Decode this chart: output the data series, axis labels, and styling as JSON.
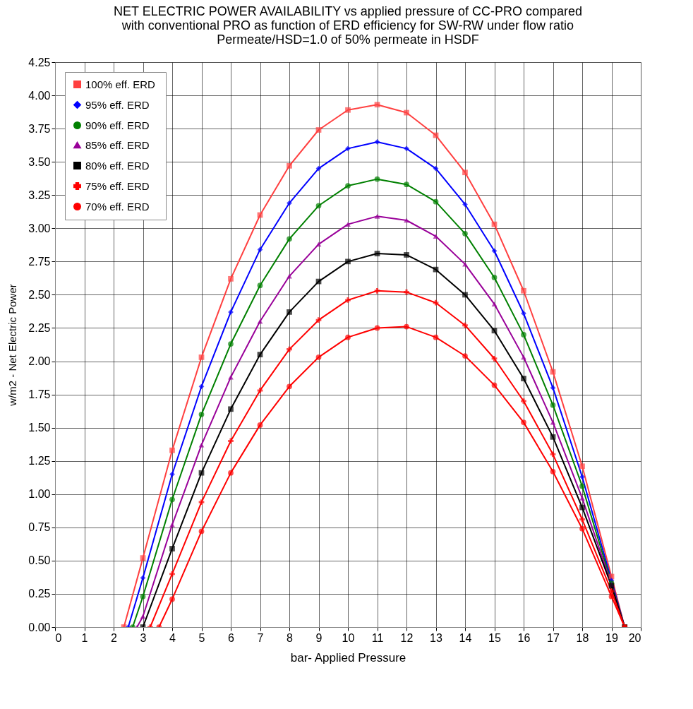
{
  "chart_data": {
    "type": "line",
    "title": [
      "NET ELECTRIC POWER AVAILABILITY vs applied pressure of CC-PRO compared",
      "with conventional PRO as function of ERD  efficiency for SW-RW under flow ratio",
      "Permeate/HSD=1.0 of 50% permeate in HSDF"
    ],
    "xlabel": "bar- Applied Pressure",
    "ylabel": "w/m2 - Net Electric Power",
    "xlim": [
      0,
      20
    ],
    "xticks": [
      0,
      1,
      2,
      3,
      4,
      5,
      6,
      7,
      8,
      9,
      10,
      11,
      12,
      13,
      14,
      15,
      16,
      17,
      18,
      19,
      20
    ],
    "ylim": [
      0,
      4.25
    ],
    "yticks": [
      {
        "value": 0,
        "label": "0.00"
      },
      {
        "value": 0.25,
        "label": "0.25"
      },
      {
        "value": 0.5,
        "label": "0.50"
      },
      {
        "value": 0.75,
        "label": "0.75"
      },
      {
        "value": 1,
        "label": "1.00"
      },
      {
        "value": 1.25,
        "label": "1.25"
      },
      {
        "value": 1.5,
        "label": "1.50"
      },
      {
        "value": 1.75,
        "label": "1.75"
      },
      {
        "value": 2,
        "label": "2.00"
      },
      {
        "value": 2.25,
        "label": "2.25"
      },
      {
        "value": 2.5,
        "label": "2.50"
      },
      {
        "value": 2.75,
        "label": "2.75"
      },
      {
        "value": 3,
        "label": "3.00"
      },
      {
        "value": 3.25,
        "label": "3.25"
      },
      {
        "value": 3.5,
        "label": "3.50"
      },
      {
        "value": 3.75,
        "label": "3.75"
      },
      {
        "value": 4,
        "label": "4.00"
      },
      {
        "value": 4.25,
        "label": "4.25"
      }
    ],
    "grid": true,
    "legend": "top left",
    "line_style": "solid",
    "series": [
      {
        "name": "100%  eff. ERD",
        "color": "#ff4040",
        "marker": "square",
        "x": [
          2.35,
          3,
          4,
          5,
          6,
          7,
          8,
          9,
          10,
          11,
          12,
          13,
          14,
          15,
          16,
          17,
          18,
          19,
          19.45
        ],
        "values": [
          0,
          0.52,
          1.33,
          2.03,
          2.62,
          3.1,
          3.47,
          3.74,
          3.89,
          3.93,
          3.87,
          3.7,
          3.42,
          3.03,
          2.53,
          1.92,
          1.21,
          0.38,
          0
        ]
      },
      {
        "name": "95% eff. ERD",
        "color": "#0000ff",
        "marker": "diamond",
        "x": [
          2.5,
          3,
          4,
          5,
          6,
          7,
          8,
          9,
          10,
          11,
          12,
          13,
          14,
          15,
          16,
          17,
          18,
          19,
          19.45
        ],
        "values": [
          0,
          0.37,
          1.15,
          1.81,
          2.37,
          2.84,
          3.19,
          3.45,
          3.6,
          3.65,
          3.6,
          3.45,
          3.18,
          2.83,
          2.36,
          1.8,
          1.13,
          0.35,
          0
        ]
      },
      {
        "name": "90% eff. ERD",
        "color": "#008000",
        "marker": "circle",
        "x": [
          2.65,
          3,
          4,
          5,
          6,
          7,
          8,
          9,
          10,
          11,
          12,
          13,
          14,
          15,
          16,
          17,
          18,
          19,
          19.45
        ],
        "values": [
          0,
          0.23,
          0.96,
          1.6,
          2.13,
          2.57,
          2.92,
          3.17,
          3.32,
          3.37,
          3.33,
          3.2,
          2.96,
          2.63,
          2.2,
          1.67,
          1.06,
          0.33,
          0
        ]
      },
      {
        "name": "85% eff. ERD",
        "color": "#990099",
        "marker": "triangle",
        "x": [
          2.8,
          3,
          4,
          5,
          6,
          7,
          8,
          9,
          10,
          11,
          12,
          13,
          14,
          15,
          16,
          17,
          18,
          19,
          19.45
        ],
        "values": [
          0,
          0.08,
          0.77,
          1.37,
          1.88,
          2.3,
          2.64,
          2.88,
          3.03,
          3.09,
          3.06,
          2.94,
          2.73,
          2.43,
          2.03,
          1.54,
          0.97,
          0.32,
          0
        ]
      },
      {
        "name": "80% eff. ERD",
        "color": "#000000",
        "marker": "square",
        "x": [
          3,
          4,
          5,
          6,
          7,
          8,
          9,
          10,
          11,
          12,
          13,
          14,
          15,
          16,
          17,
          18,
          19,
          19.45
        ],
        "values": [
          0,
          0.59,
          1.16,
          1.64,
          2.05,
          2.37,
          2.6,
          2.75,
          2.81,
          2.8,
          2.69,
          2.5,
          2.23,
          1.87,
          1.43,
          0.9,
          0.31,
          0
        ]
      },
      {
        "name": "75% eff. ERD",
        "color": "#ff0000",
        "marker": "cross",
        "x": [
          3.25,
          4,
          5,
          6,
          7,
          8,
          9,
          10,
          11,
          12,
          13,
          14,
          15,
          16,
          17,
          18,
          19,
          19.45
        ],
        "values": [
          0,
          0.4,
          0.94,
          1.4,
          1.78,
          2.09,
          2.31,
          2.46,
          2.53,
          2.52,
          2.44,
          2.27,
          2.02,
          1.7,
          1.3,
          0.81,
          0.27,
          0
        ]
      },
      {
        "name": "70% eff. ERD",
        "color": "#ff0000",
        "marker": "circle",
        "x": [
          3.55,
          4,
          5,
          6,
          7,
          8,
          9,
          10,
          11,
          12,
          13,
          14,
          15,
          16,
          17,
          18,
          19,
          19.45
        ],
        "values": [
          0,
          0.21,
          0.72,
          1.16,
          1.52,
          1.81,
          2.03,
          2.18,
          2.25,
          2.26,
          2.18,
          2.04,
          1.82,
          1.54,
          1.17,
          0.74,
          0.23,
          0
        ]
      }
    ]
  }
}
